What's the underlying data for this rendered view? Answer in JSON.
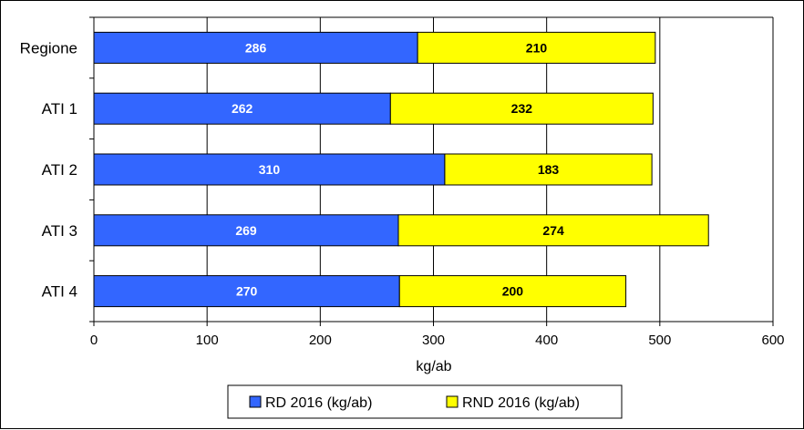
{
  "chart_data": {
    "type": "bar",
    "orientation": "horizontal",
    "stacked": true,
    "categories": [
      "Regione",
      "ATI 1",
      "ATI 2",
      "ATI 3",
      "ATI 4"
    ],
    "series": [
      {
        "name": "RD 2016 (kg/ab)",
        "values": [
          286,
          262,
          310,
          269,
          270
        ],
        "color": "#3366ff",
        "label_color": "#ffffff"
      },
      {
        "name": "RND 2016 (kg/ab)",
        "values": [
          210,
          232,
          183,
          274,
          200
        ],
        "color": "#ffff00",
        "label_color": "#000000"
      }
    ],
    "xlabel": "kg/ab",
    "ylabel": "",
    "xlim": [
      0,
      600
    ],
    "xticks": [
      0,
      100,
      200,
      300,
      400,
      500,
      600
    ],
    "grid": "vertical",
    "legend_position": "bottom"
  }
}
